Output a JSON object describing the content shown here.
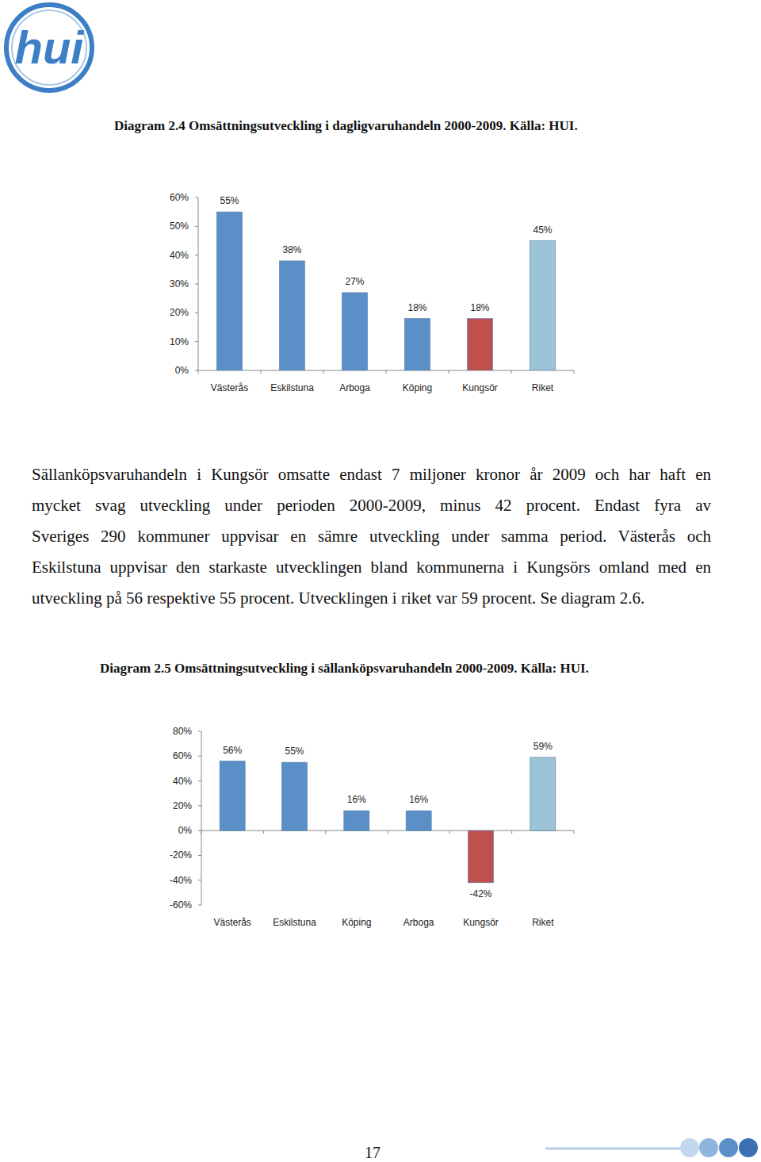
{
  "logo": "hui",
  "chart_data": [
    {
      "type": "bar",
      "title": "Diagram 2.4 Omsättningsutveckling i dagligvaruhandeln 2000-2009. Källa: HUI.",
      "categories": [
        "Västerås",
        "Eskilstuna",
        "Arboga",
        "Köping",
        "Kungsör",
        "Riket"
      ],
      "values": [
        55,
        38,
        27,
        18,
        18,
        45
      ],
      "value_labels": [
        "55%",
        "38%",
        "27%",
        "18%",
        "18%",
        "45%"
      ],
      "colors": [
        "#5b8fc7",
        "#5b8fc7",
        "#5b8fc7",
        "#5b8fc7",
        "#c0504d",
        "#9dc3d6"
      ],
      "ylim": [
        0,
        60
      ],
      "yticks": [
        {
          "value": 0,
          "label": "0%"
        },
        {
          "value": 10,
          "label": "10%"
        },
        {
          "value": 20,
          "label": "20%"
        },
        {
          "value": 30,
          "label": "30%"
        },
        {
          "value": 40,
          "label": "40%"
        },
        {
          "value": 50,
          "label": "50%"
        },
        {
          "value": 60,
          "label": "60%"
        }
      ],
      "grid": false,
      "data_labels": true
    },
    {
      "type": "bar",
      "title": "Diagram 2.5 Omsättningsutveckling i sällanköpsvaruhandeln 2000-2009. Källa: HUI.",
      "categories": [
        "Västerås",
        "Eskilstuna",
        "Köping",
        "Arboga",
        "Kungsör",
        "Riket"
      ],
      "values": [
        56,
        55,
        16,
        16,
        -42,
        59
      ],
      "value_labels": [
        "56%",
        "55%",
        "16%",
        "16%",
        "-42%",
        "59%"
      ],
      "colors": [
        "#5b8fc7",
        "#5b8fc7",
        "#5b8fc7",
        "#5b8fc7",
        "#c0504d",
        "#9dc3d6"
      ],
      "ylim": [
        -60,
        80
      ],
      "yticks": [
        {
          "value": -60,
          "label": "-60%"
        },
        {
          "value": -40,
          "label": "-40%"
        },
        {
          "value": -20,
          "label": "-20%"
        },
        {
          "value": 0,
          "label": "0%"
        },
        {
          "value": 20,
          "label": "20%"
        },
        {
          "value": 40,
          "label": "40%"
        },
        {
          "value": 60,
          "label": "60%"
        },
        {
          "value": 80,
          "label": "80%"
        }
      ],
      "grid": false,
      "data_labels": true
    }
  ],
  "body": [
    "Sällanköpsvaruhandeln i Kungsör omsatte endast 7 miljoner kronor år 2009 och har haft en",
    "mycket svag utveckling under perioden 2000-2009, minus 42 procent. Endast fyra av",
    "Sveriges 290 kommuner uppvisar en sämre utveckling under samma period. Västerås och",
    "Eskilstuna uppvisar den starkaste utvecklingen bland kommunerna i Kungsörs omland med en",
    "utveckling på 56 respektive 55 procent. Utvecklingen i riket var 59 procent. Se diagram 2.6."
  ],
  "page_number": 17
}
